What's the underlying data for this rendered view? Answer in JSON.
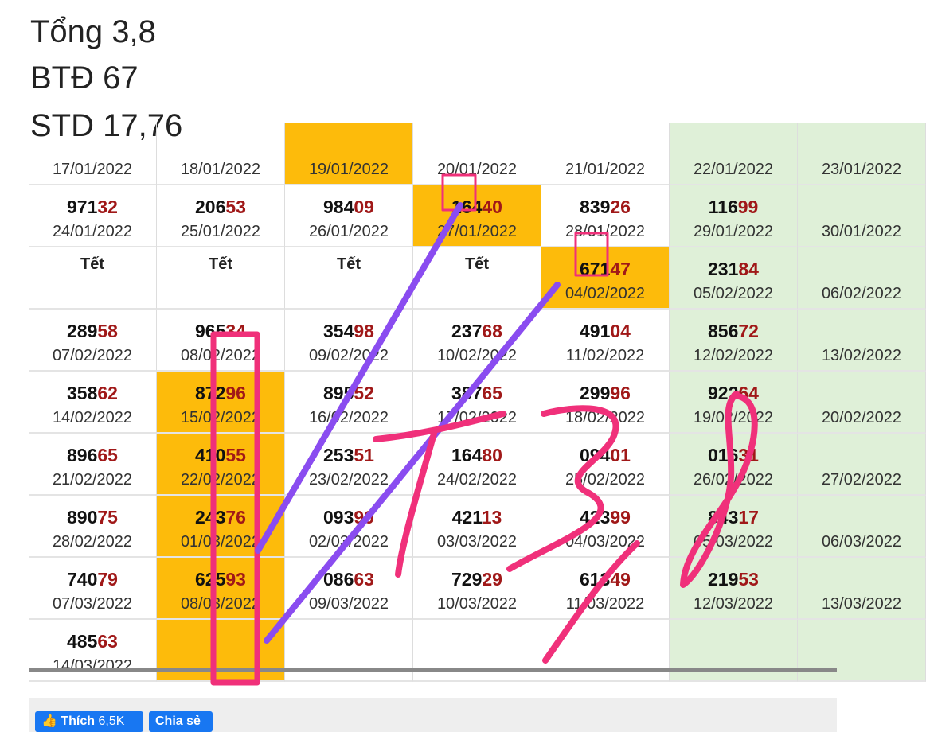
{
  "caption": {
    "line1": "Tổng 3,8",
    "line2": "BTĐ 67",
    "line3": "STD 17,76"
  },
  "colors": {
    "highlight": "#fdbb0b",
    "weekend": "#dff0d8",
    "tail": "#a01818",
    "pen_pink": "#f0307a",
    "pen_purple": "#8a4cf0"
  },
  "rows": [
    [
      {
        "date": "17/01/2022"
      },
      {
        "date": "18/01/2022"
      },
      {
        "date": "19/01/2022",
        "hl": true
      },
      {
        "date": "20/01/2022"
      },
      {
        "date": "21/01/2022"
      },
      {
        "date": "22/01/2022"
      },
      {
        "date": "23/01/2022"
      }
    ],
    [
      {
        "num": "97132",
        "date": "24/01/2022"
      },
      {
        "num": "20653",
        "date": "25/01/2022"
      },
      {
        "num": "98409",
        "date": "26/01/2022"
      },
      {
        "num": "16440",
        "date": "27/01/2022",
        "hl": true
      },
      {
        "num": "83926",
        "date": "28/01/2022"
      },
      {
        "num": "11699",
        "date": "29/01/2022"
      },
      {
        "date": "30/01/2022"
      }
    ],
    [
      {
        "tet": "Tết"
      },
      {
        "tet": "Tết"
      },
      {
        "tet": "Tết"
      },
      {
        "tet": "Tết"
      },
      {
        "num": "67147",
        "date": "04/02/2022",
        "hl": true
      },
      {
        "num": "23184",
        "date": "05/02/2022"
      },
      {
        "date": "06/02/2022"
      }
    ],
    [
      {
        "num": "28958",
        "date": "07/02/2022"
      },
      {
        "num": "96534",
        "date": "08/02/2022"
      },
      {
        "num": "35498",
        "date": "09/02/2022"
      },
      {
        "num": "23768",
        "date": "10/02/2022"
      },
      {
        "num": "49104",
        "date": "11/02/2022"
      },
      {
        "num": "85672",
        "date": "12/02/2022"
      },
      {
        "date": "13/02/2022"
      }
    ],
    [
      {
        "num": "35862",
        "date": "14/02/2022"
      },
      {
        "num": "87296",
        "date": "15/02/2022",
        "hl": true
      },
      {
        "num": "89552",
        "date": "16/02/2022"
      },
      {
        "num": "38765",
        "date": "17/02/2022"
      },
      {
        "num": "29996",
        "date": "18/02/2022"
      },
      {
        "num": "92264",
        "date": "19/02/2022"
      },
      {
        "date": "20/02/2022"
      }
    ],
    [
      {
        "num": "89665",
        "date": "21/02/2022"
      },
      {
        "num": "41055",
        "date": "22/02/2022",
        "hl": true
      },
      {
        "num": "25351",
        "date": "23/02/2022"
      },
      {
        "num": "16480",
        "date": "24/02/2022"
      },
      {
        "num": "09401",
        "date": "25/02/2022"
      },
      {
        "num": "01631",
        "date": "26/02/2022"
      },
      {
        "date": "27/02/2022"
      }
    ],
    [
      {
        "num": "89075",
        "date": "28/02/2022"
      },
      {
        "num": "24376",
        "date": "01/03/2022",
        "hl": true
      },
      {
        "num": "09390",
        "date": "02/03/2022"
      },
      {
        "num": "42113",
        "date": "03/03/2022"
      },
      {
        "num": "42399",
        "date": "04/03/2022"
      },
      {
        "num": "84317",
        "date": "05/03/2022"
      },
      {
        "date": "06/03/2022"
      }
    ],
    [
      {
        "num": "74079",
        "date": "07/03/2022"
      },
      {
        "num": "62593",
        "date": "08/03/2022",
        "hl": true
      },
      {
        "num": "08663",
        "date": "09/03/2022"
      },
      {
        "num": "72929",
        "date": "10/03/2022"
      },
      {
        "num": "61349",
        "date": "11/03/2022"
      },
      {
        "num": "21953",
        "date": "12/03/2022"
      },
      {
        "date": "13/03/2022"
      }
    ],
    [
      {
        "num": "48563",
        "date": "14/03/2022"
      },
      {
        "hl": true
      },
      {},
      {},
      {},
      {},
      {}
    ]
  ],
  "footer": {
    "like_label": "Thích",
    "like_count": "6,5K",
    "share_label": "Chia sẻ",
    "like_icon": "thumbs-up-icon"
  }
}
